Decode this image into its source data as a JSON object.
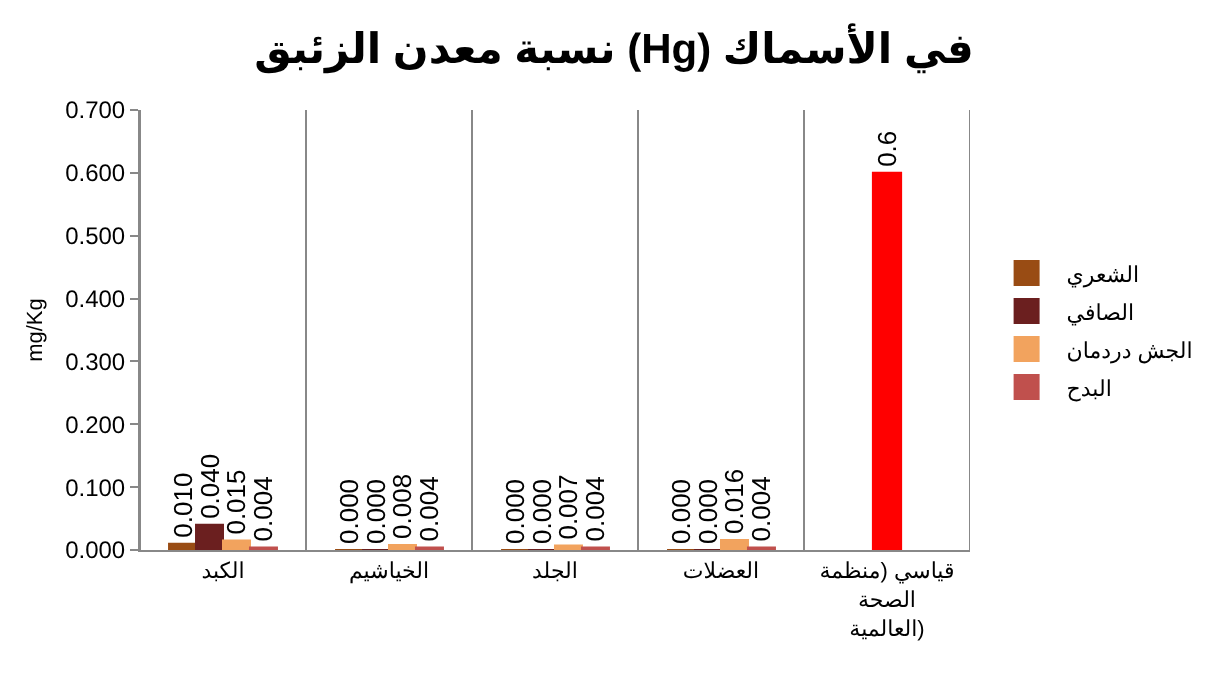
{
  "chart_data": {
    "type": "bar",
    "title": "نسبة معدن الزئبق (Hg) في الأسماك",
    "ylabel": "mg/Kg",
    "categories": [
      "الكبد",
      "الخياشيم",
      "الجلد",
      "العضلات",
      "قياسي (منظمة الصحة العالمية)"
    ],
    "series": [
      {
        "name": "الشعري",
        "color": "#994c14",
        "values": [
          0.01,
          0.0,
          0.0,
          0.0,
          null
        ],
        "value_labels": [
          "0.010",
          "0.000",
          "0.000",
          "0.000",
          null
        ]
      },
      {
        "name": "الصافي",
        "color": "#6b1f1f",
        "values": [
          0.04,
          0.0,
          0.0,
          0.0,
          null
        ],
        "value_labels": [
          "0.040",
          "0.000",
          "0.000",
          "0.000",
          null
        ]
      },
      {
        "name": "الجش دردمان",
        "color": "#f2a35e",
        "values": [
          0.015,
          0.008,
          0.007,
          0.016,
          null
        ],
        "value_labels": [
          "0.015",
          "0.008",
          "0.007",
          "0.016",
          null
        ]
      },
      {
        "name": "البدح",
        "color": "#c0504d",
        "values": [
          0.004,
          0.004,
          0.004,
          0.004,
          null
        ],
        "value_labels": [
          "0.004",
          "0.004",
          "0.004",
          "0.004",
          null
        ]
      },
      {
        "color": "#ff0000",
        "values": [
          null,
          null,
          null,
          null,
          0.6
        ],
        "value_labels": [
          null,
          null,
          null,
          null,
          "0.6"
        ]
      }
    ],
    "ylim": [
      0,
      0.7
    ],
    "yticks": [
      {
        "value": 0,
        "label": "0.000"
      },
      {
        "value": 0.1,
        "label": "0.100"
      },
      {
        "value": 0.2,
        "label": "0.200"
      },
      {
        "value": 0.3,
        "label": "0.300"
      },
      {
        "value": 0.4,
        "label": "0.400"
      },
      {
        "value": 0.5,
        "label": "0.500"
      },
      {
        "value": 0.6,
        "label": "0.600"
      },
      {
        "value": 0.7,
        "label": "0.700"
      }
    ],
    "grid": "x",
    "legend": "right"
  }
}
